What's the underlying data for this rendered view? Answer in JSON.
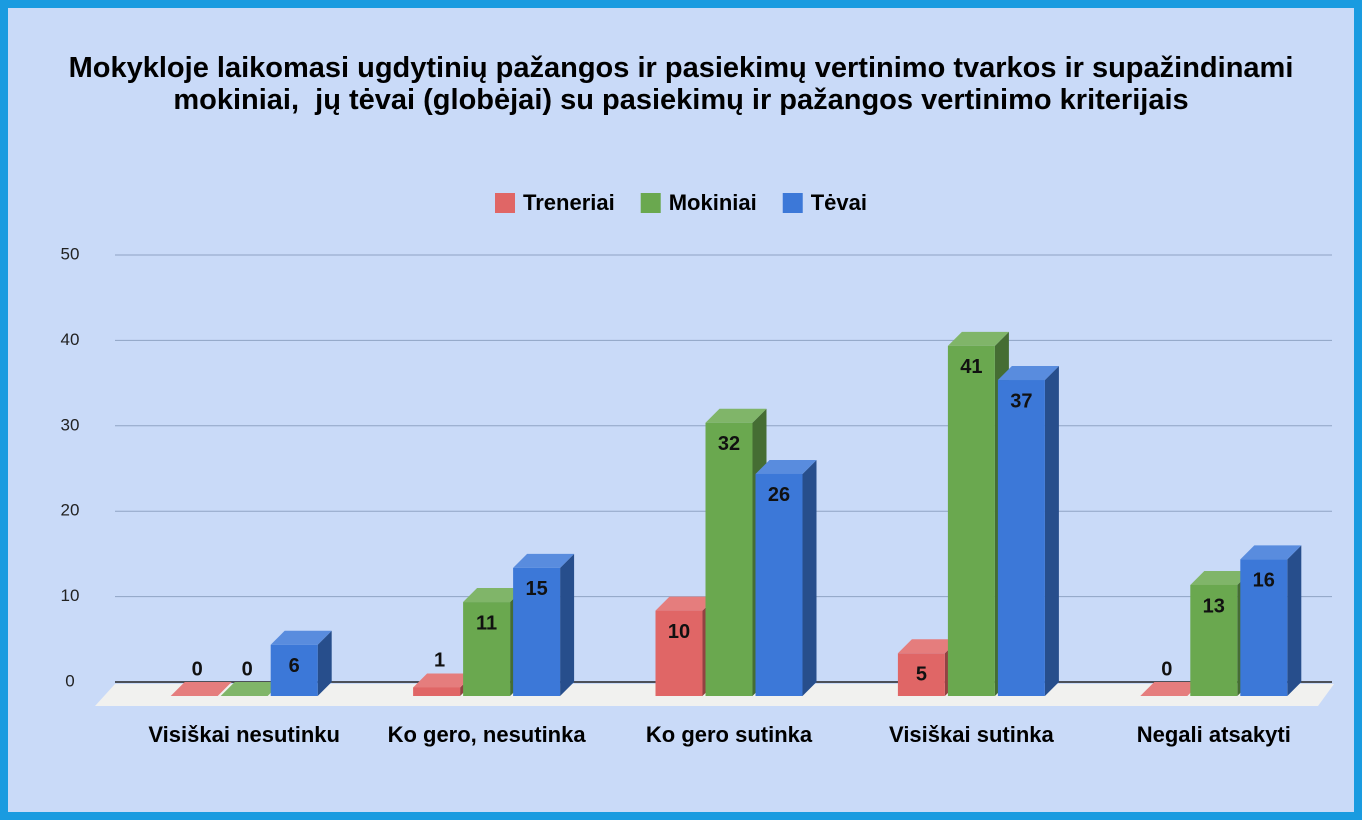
{
  "chart_data": {
    "type": "bar3d",
    "title": "Mokykloje laikomasi ugdytinių pažangos ir pasiekimų vertinimo tvarkos ir supažindinami  mokiniai,  jų tėvai (globėjai) su pasiekimų ir pažangos vertinimo kriterijais",
    "categories": [
      "Visiškai nesutinku",
      "Ko gero, nesutinka",
      "Ko gero sutinka",
      "Visiškai sutinka",
      "Negali atsakyti"
    ],
    "series": [
      {
        "name": "Treneriai",
        "color": "#e06666",
        "values": [
          0,
          1,
          10,
          5,
          0
        ]
      },
      {
        "name": "Mokiniai",
        "color": "#6aa84f",
        "values": [
          0,
          11,
          32,
          41,
          13
        ]
      },
      {
        "name": "Tėvai",
        "color": "#3c78d8",
        "values": [
          6,
          15,
          26,
          37,
          16
        ]
      }
    ],
    "ylim": [
      0,
      50
    ],
    "yticks": [
      0,
      10,
      20,
      30,
      40,
      50
    ],
    "grid": true,
    "legend": "top"
  }
}
